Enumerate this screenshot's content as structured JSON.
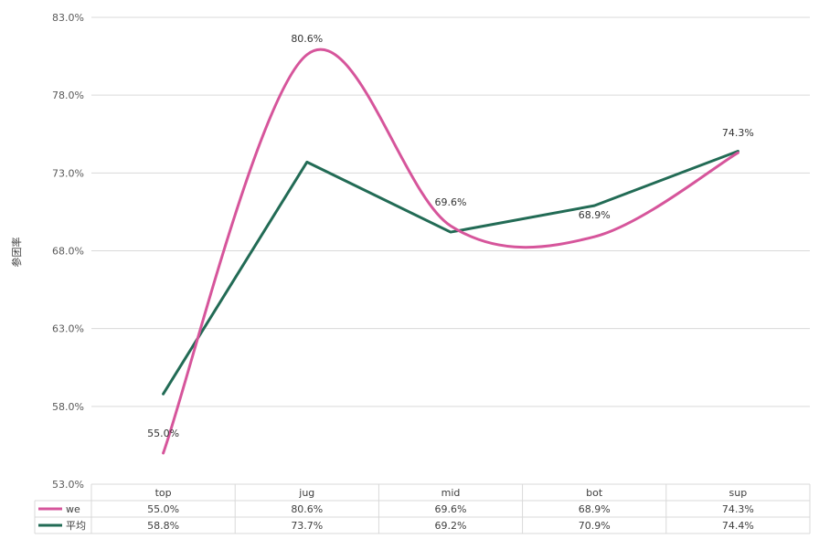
{
  "chart_data": {
    "type": "line",
    "title": "",
    "ylabel": "参团率",
    "xlabel": "",
    "categories": [
      "top",
      "jug",
      "mid",
      "bot",
      "sup"
    ],
    "ylim": [
      53.0,
      83.0
    ],
    "yticks": [
      53.0,
      58.0,
      63.0,
      68.0,
      73.0,
      78.0,
      83.0
    ],
    "ytick_format": "percent-1-decimal",
    "grid": true,
    "legend": "data-table-below",
    "series": [
      {
        "name": "we",
        "values": [
          55.0,
          80.6,
          69.6,
          68.9,
          74.3
        ],
        "smooth": true,
        "color": "#d6559b",
        "data_labels": [
          "55.0%",
          "80.6%",
          "69.6%",
          "68.9%",
          "74.3%"
        ]
      },
      {
        "name": "平均",
        "values": [
          58.8,
          73.7,
          69.2,
          70.9,
          74.4
        ],
        "smooth": false,
        "color": "#226b55",
        "data_labels": []
      }
    ],
    "table": {
      "headers": [
        "top",
        "jug",
        "mid",
        "bot",
        "sup"
      ],
      "rows": [
        {
          "series": "we",
          "cells": [
            "55.0%",
            "80.6%",
            "69.6%",
            "68.9%",
            "74.3%"
          ]
        },
        {
          "series": "平均",
          "cells": [
            "58.8%",
            "73.7%",
            "69.2%",
            "70.9%",
            "74.4%"
          ]
        }
      ]
    },
    "colors": {
      "grid": "#d9d9d9",
      "table_border": "#d9d9d9"
    }
  }
}
